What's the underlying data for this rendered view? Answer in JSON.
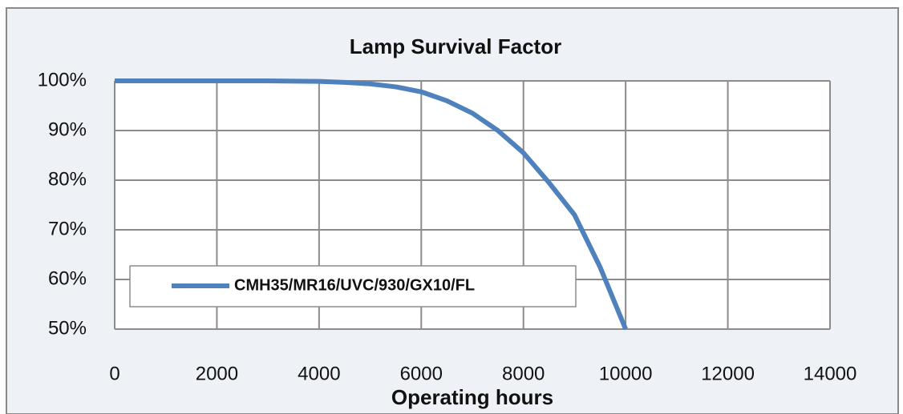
{
  "chart_data": {
    "type": "line",
    "title": "Lamp Survival Factor",
    "x_label": "Operating hours",
    "x": [
      0,
      1000,
      2000,
      3000,
      4000,
      4500,
      5000,
      5500,
      6000,
      6500,
      7000,
      7500,
      8000,
      8500,
      9000,
      9500,
      10000
    ],
    "series": [
      {
        "name": "CMH35/MR16/UVC/930/GX10/FL",
        "color": "#4f81bd",
        "values": [
          100,
          100,
          100,
          100,
          99.9,
          99.7,
          99.4,
          98.8,
          97.8,
          96,
          93.5,
          90,
          85.5,
          79.5,
          73,
          62.5,
          50
        ]
      }
    ],
    "xlim": [
      0,
      14000
    ],
    "xticks": [
      0,
      2000,
      4000,
      6000,
      8000,
      10000,
      12000,
      14000
    ],
    "ylim": [
      50,
      100
    ],
    "yticks": [
      {
        "value": 50,
        "label": "50%"
      },
      {
        "value": 60,
        "label": "60%"
      },
      {
        "value": 70,
        "label": "70%"
      },
      {
        "value": 80,
        "label": "80%"
      },
      {
        "value": 90,
        "label": "90%"
      },
      {
        "value": 100,
        "label": "100%"
      }
    ],
    "grid": true,
    "legend": "lower-left"
  }
}
